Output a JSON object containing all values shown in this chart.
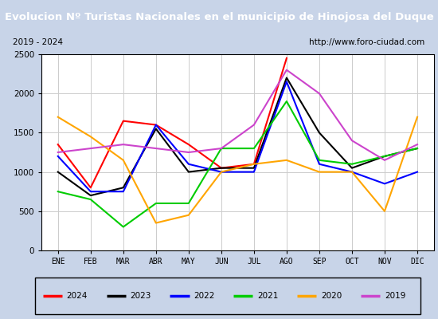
{
  "title": "Evolucion Nº Turistas Nacionales en el municipio de Hinojosa del Duque",
  "subtitle_left": "2019 - 2024",
  "subtitle_right": "http://www.foro-ciudad.com",
  "title_bg": "#4472c4",
  "title_color": "white",
  "fig_bg": "#c8d4e8",
  "months": [
    "ENE",
    "FEB",
    "MAR",
    "ABR",
    "MAY",
    "JUN",
    "JUL",
    "AGO",
    "SEP",
    "OCT",
    "NOV",
    "DIC"
  ],
  "series": {
    "2024": {
      "color": "red",
      "data": [
        1350,
        800,
        1650,
        1600,
        1350,
        1050,
        1100,
        2450,
        null,
        null,
        null,
        null
      ]
    },
    "2023": {
      "color": "black",
      "data": [
        1000,
        700,
        800,
        1550,
        1000,
        1050,
        1050,
        2200,
        1500,
        1050,
        1200,
        1300
      ]
    },
    "2022": {
      "color": "blue",
      "data": [
        1200,
        750,
        750,
        1600,
        1100,
        1000,
        1000,
        2150,
        1100,
        1000,
        850,
        1000
      ]
    },
    "2021": {
      "color": "#00cc00",
      "data": [
        750,
        650,
        300,
        600,
        600,
        1300,
        1300,
        1900,
        1150,
        1100,
        1200,
        1300
      ]
    },
    "2020": {
      "color": "orange",
      "data": [
        1700,
        1450,
        1150,
        350,
        450,
        1000,
        1100,
        1150,
        1000,
        1000,
        500,
        1700
      ]
    },
    "2019": {
      "color": "#cc44cc",
      "data": [
        1250,
        1300,
        1350,
        1300,
        1250,
        1300,
        1600,
        2300,
        2000,
        1400,
        1150,
        1350
      ]
    }
  },
  "ylim": [
    0,
    2500
  ],
  "yticks": [
    0,
    500,
    1000,
    1500,
    2000,
    2500
  ],
  "legend_order": [
    "2024",
    "2023",
    "2022",
    "2021",
    "2020",
    "2019"
  ]
}
